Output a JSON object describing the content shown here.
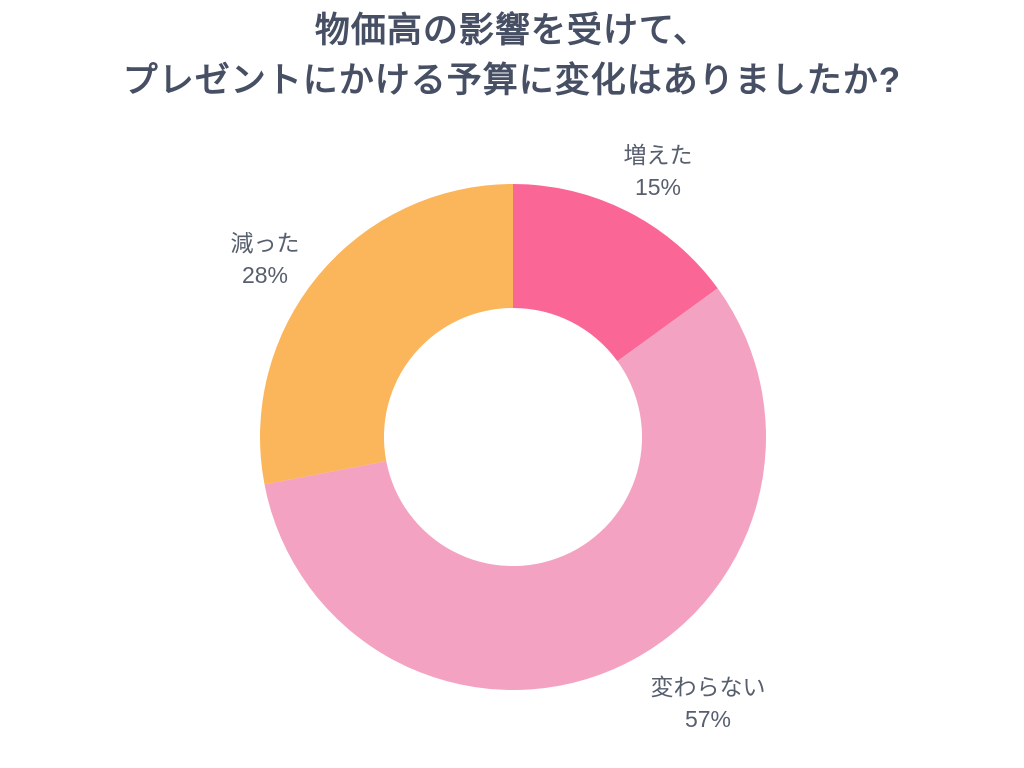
{
  "title": {
    "line1": "物価高の影響を受けて、",
    "line2": "プレゼントにかける予算に変化はありましたか?"
  },
  "chart_data": {
    "type": "pie",
    "subtype": "donut",
    "title": "物価高の影響を受けて、プレゼントにかける予算に変化はありましたか?",
    "categories": [
      "増えた",
      "変わらない",
      "減った"
    ],
    "values": [
      15,
      57,
      28
    ],
    "unit": "%",
    "colors": [
      "#FA6696",
      "#F4A2C1",
      "#FBB65B"
    ],
    "start_angle": "top",
    "direction": "clockwise",
    "inner_radius_ratio": 0.51,
    "legend": "none",
    "labels": [
      {
        "name": "増えた",
        "percent": "15%",
        "position": "top-right"
      },
      {
        "name": "変わらない",
        "percent": "57%",
        "position": "bottom-right"
      },
      {
        "name": "減った",
        "percent": "28%",
        "position": "left"
      }
    ]
  },
  "colors": {
    "background": "#FFFFFF",
    "title_text": "#464F63",
    "label_text": "#575F6E"
  }
}
